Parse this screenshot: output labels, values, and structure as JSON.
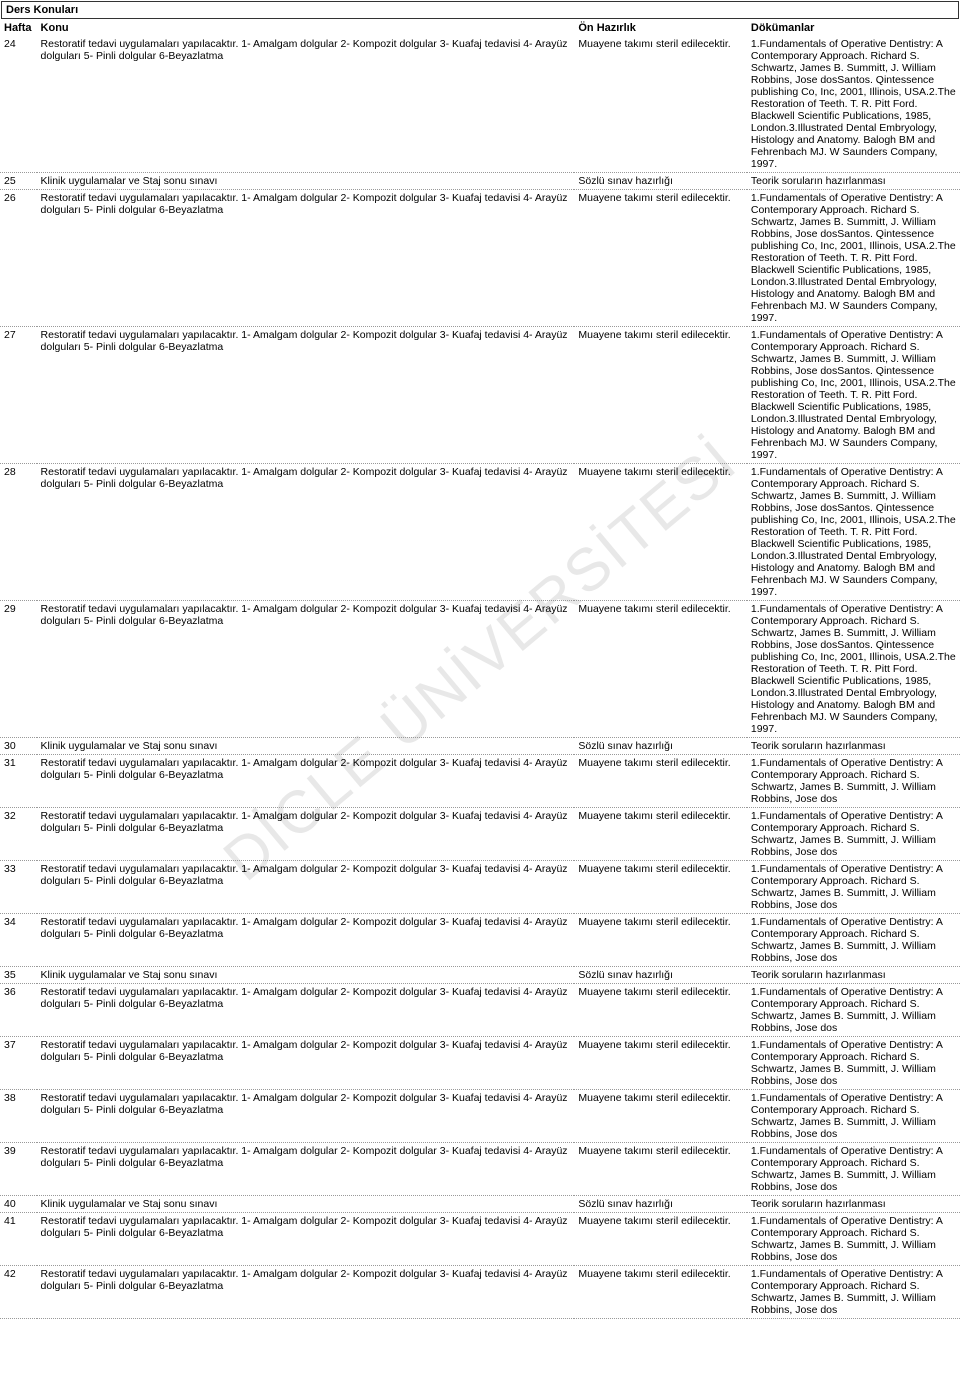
{
  "watermark": "DİCLE ÜNİVERSİTESİ",
  "section_title": "Ders Konuları",
  "headers": {
    "week": "Hafta",
    "topic": "Konu",
    "prep": "Ön Hazırlık",
    "docs": "Dökümanlar"
  },
  "topic_long": "Restoratif tedavi uygulamaları yapılacaktır. 1- Amalgam dolgular 2- Kompozit dolgular 3- Kuafaj tedavisi 4- Arayüz dolguları 5- Pinli dolgular 6-Beyazlatma",
  "topic_exam": "Klinik uygulamalar ve Staj sonu sınavı",
  "prep_std": "Muayene takımı steril edilecektir.",
  "prep_exam": "Sözlü sınav hazırlığı",
  "doc_full": "1.Fundamentals of Operative Dentistry: A Contemporary Approach. Richard S. Schwartz, James B. Summitt, J. William Robbins, Jose dosSantos. Qintessence publishing Co, Inc, 2001, Illinois, USA.2.The Restoration of Teeth. T. R. Pitt Ford. Blackwell Scientific Publications, 1985, London.3.Illustrated Dental Embryology, Histology and Anatomy. Balogh BM and Fehrenbach MJ. W Saunders Company, 1997.",
  "doc_short": "1.Fundamentals of Operative Dentistry: A Contemporary Approach. Richard S. Schwartz, James B. Summitt, J. William Robbins, Jose dos",
  "doc_exam": "Teorik soruların hazırlanması",
  "rows": [
    {
      "week": "24",
      "type": "full"
    },
    {
      "week": "25",
      "type": "exam"
    },
    {
      "week": "26",
      "type": "full"
    },
    {
      "week": "27",
      "type": "full"
    },
    {
      "week": "28",
      "type": "full"
    },
    {
      "week": "29",
      "type": "full"
    },
    {
      "week": "30",
      "type": "exam"
    },
    {
      "week": "31",
      "type": "short"
    },
    {
      "week": "32",
      "type": "short"
    },
    {
      "week": "33",
      "type": "short"
    },
    {
      "week": "34",
      "type": "short"
    },
    {
      "week": "35",
      "type": "exam"
    },
    {
      "week": "36",
      "type": "short"
    },
    {
      "week": "37",
      "type": "short"
    },
    {
      "week": "38",
      "type": "short"
    },
    {
      "week": "39",
      "type": "short"
    },
    {
      "week": "40",
      "type": "exam"
    },
    {
      "week": "41",
      "type": "short"
    },
    {
      "week": "42",
      "type": "short"
    }
  ]
}
